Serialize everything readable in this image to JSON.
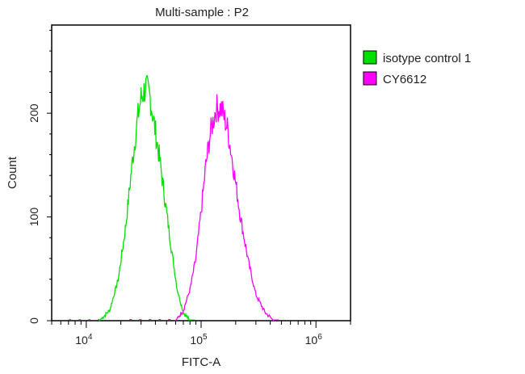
{
  "chart_data": {
    "type": "line",
    "title": "Multi-sample : P2",
    "xlabel": "FITC-A",
    "ylabel": "Count",
    "x_scale": "log",
    "xlim": [
      5000,
      2000000
    ],
    "ylim": [
      0,
      285
    ],
    "x_ticks": [
      {
        "value": 10000,
        "base": "10",
        "exp": "4"
      },
      {
        "value": 100000,
        "base": "10",
        "exp": "5"
      },
      {
        "value": 1000000,
        "base": "10",
        "exp": "6"
      }
    ],
    "y_ticks": [
      {
        "value": 0,
        "label": "0"
      },
      {
        "value": 100,
        "label": "100"
      },
      {
        "value": 200,
        "label": "200"
      }
    ],
    "grid": false,
    "legend_position": "right",
    "series": [
      {
        "name": "isotype control 1",
        "color": "#00e000",
        "x": [
          13000,
          16000,
          19000,
          22000,
          25000,
          28000,
          30000,
          33000,
          36000,
          39000,
          43000,
          48000,
          55000,
          62000,
          70000,
          80000
        ],
        "y": [
          0,
          10,
          40,
          90,
          150,
          195,
          215,
          225,
          215,
          190,
          160,
          120,
          70,
          30,
          8,
          0
        ]
      },
      {
        "name": "CY6612",
        "color": "#ff00ff",
        "x": [
          60000,
          70000,
          80000,
          90000,
          100000,
          110000,
          120000,
          135000,
          150000,
          170000,
          190000,
          220000,
          260000,
          300000,
          360000,
          430000
        ],
        "y": [
          0,
          10,
          30,
          60,
          105,
          150,
          180,
          205,
          205,
          185,
          150,
          100,
          55,
          25,
          8,
          0
        ]
      }
    ]
  }
}
